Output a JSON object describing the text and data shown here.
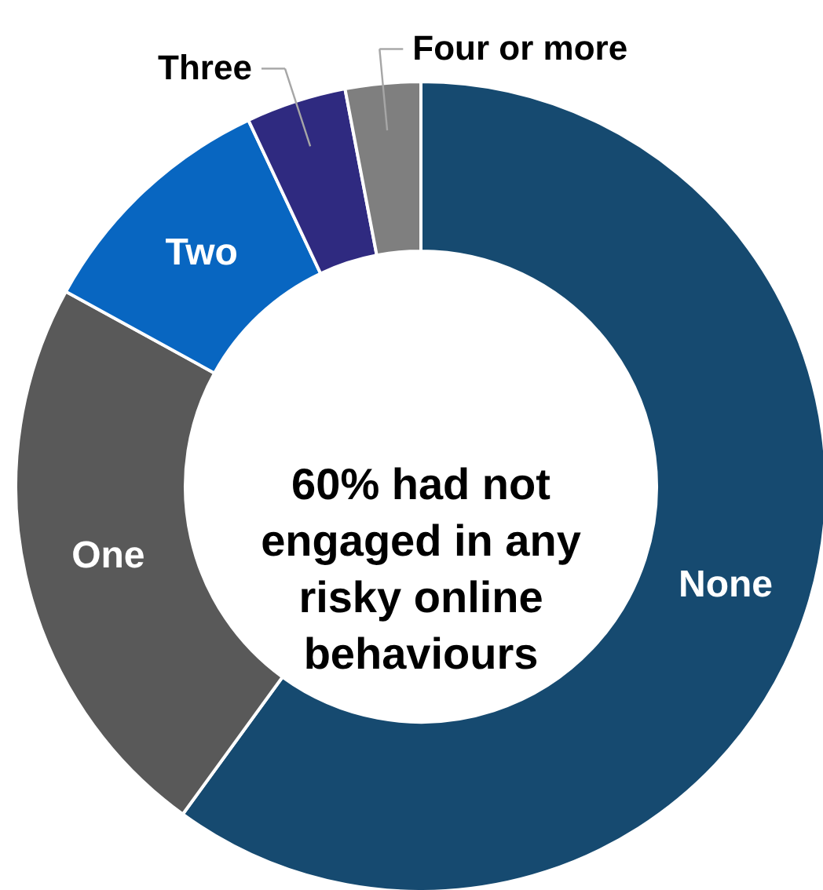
{
  "chart_data": {
    "type": "donut",
    "categories": [
      "None",
      "One",
      "Two",
      "Three",
      "Four or more"
    ],
    "values": [
      60,
      23,
      10,
      4,
      3
    ],
    "colors": [
      "#164a70",
      "#595959",
      "#0866c1",
      "#2f2a80",
      "#7f7f7f"
    ],
    "annotations": [
      "60% had not\nengaged in any\nrisky online\nbehaviours"
    ]
  }
}
